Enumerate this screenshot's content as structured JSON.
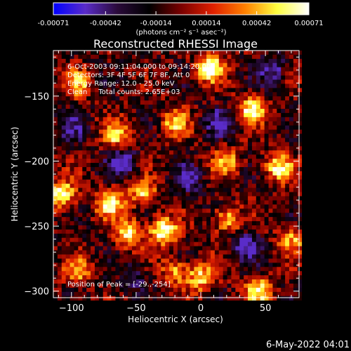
{
  "chart_data": {
    "type": "heatmap",
    "title": "Reconstructed RHESSI Image",
    "xlabel": "Heliocentric X (arcsec)",
    "ylabel": "Heliocentric Y (arcsec)",
    "xlim": [
      -114,
      76
    ],
    "ylim": [
      -305,
      -115
    ],
    "x_ticks": [
      -100,
      -50,
      0,
      50
    ],
    "y_ticks": [
      -150,
      -200,
      -250,
      -300
    ],
    "colorbar": {
      "ticks": [
        "-0.00071",
        "-0.00042",
        "-0.00014",
        "0.00014",
        "0.00042",
        "0.00071"
      ],
      "range": [
        -0.00071,
        0.00071
      ],
      "unit": "(photons cm⁻² s⁻¹ asec⁻²)",
      "colormap": [
        "#0000ff",
        "#5a2cc8",
        "#2a0a3a",
        "#000000",
        "#7a0000",
        "#e02000",
        "#ff8000",
        "#ffff40",
        "#ffffff"
      ]
    },
    "annotations": [
      "6-Oct-2003 09:11:04.000 to 09:14:20.000",
      "Detectors: 3F 4F 5F 6F 7F 8F, Att 0",
      "Energy Range: 12.0 - 25.0 keV",
      "Clean     Total counts: 2.65E+03",
      "Position of Peak = [-29.,-254]"
    ],
    "peak": {
      "x": -29,
      "y": -254
    },
    "bright_sources": [
      {
        "x": -108,
        "y": -226,
        "v": 0.95
      },
      {
        "x": -70,
        "y": -232,
        "v": 0.95
      },
      {
        "x": -29,
        "y": -254,
        "v": 1.0
      },
      {
        "x": -55,
        "y": -255,
        "v": 0.8
      },
      {
        "x": 7,
        "y": -128,
        "v": 1.0
      },
      {
        "x": 40,
        "y": -160,
        "v": 0.9
      },
      {
        "x": 60,
        "y": -205,
        "v": 0.85
      },
      {
        "x": -65,
        "y": -180,
        "v": 0.75
      },
      {
        "x": -20,
        "y": -170,
        "v": 0.65
      },
      {
        "x": 0,
        "y": -290,
        "v": 0.75
      },
      {
        "x": 45,
        "y": -300,
        "v": 0.8
      },
      {
        "x": -45,
        "y": -225,
        "v": 0.7
      },
      {
        "x": 20,
        "y": -245,
        "v": 0.7
      },
      {
        "x": -95,
        "y": -285,
        "v": 0.55
      },
      {
        "x": 70,
        "y": -260,
        "v": 0.6
      },
      {
        "x": -95,
        "y": -140,
        "v": 0.6
      },
      {
        "x": -20,
        "y": -285,
        "v": 0.6
      },
      {
        "x": 20,
        "y": -200,
        "v": 0.6
      }
    ],
    "negative_sources": [
      {
        "x": -60,
        "y": -200,
        "v": 0.8
      },
      {
        "x": 35,
        "y": -265,
        "v": 0.7
      },
      {
        "x": -10,
        "y": -215,
        "v": 0.6
      },
      {
        "x": 55,
        "y": -130,
        "v": 0.6
      },
      {
        "x": -100,
        "y": -175,
        "v": 0.5
      },
      {
        "x": 15,
        "y": -170,
        "v": 0.6
      },
      {
        "x": -50,
        "y": -290,
        "v": 0.5
      }
    ]
  },
  "footer": {
    "date": "6-May-2022 04:01"
  }
}
